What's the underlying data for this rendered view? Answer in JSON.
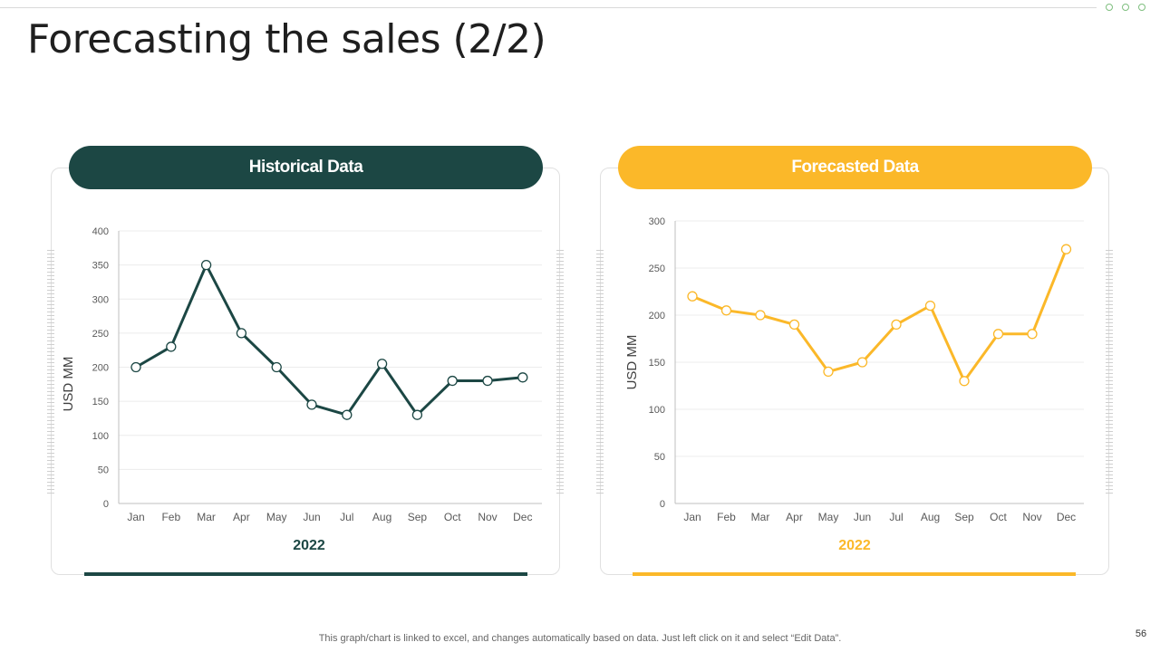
{
  "slide": {
    "title": "Forecasting the sales (2/2)",
    "footer_note": "This graph/chart is linked to excel,  and changes automatically based on data. Just left click on it and select “Edit Data”.",
    "page_number": "56"
  },
  "colors": {
    "historical": "#1c4744",
    "forecast": "#fbb829"
  },
  "chart_data": [
    {
      "type": "line",
      "title": "Historical Data",
      "categories": [
        "Jan",
        "Feb",
        "Mar",
        "Apr",
        "May",
        "Jun",
        "Jul",
        "Aug",
        "Sep",
        "Oct",
        "Nov",
        "Dec"
      ],
      "series": [
        {
          "name": "2022",
          "values": [
            200,
            230,
            350,
            250,
            200,
            145,
            130,
            205,
            130,
            180,
            180,
            185
          ]
        }
      ],
      "xlabel": "2022",
      "ylabel": "USD MM",
      "ylim": [
        0,
        400
      ],
      "yticks": [
        0,
        50,
        100,
        150,
        200,
        250,
        300,
        350,
        400
      ],
      "grid": true
    },
    {
      "type": "line",
      "title": "Forecasted Data",
      "categories": [
        "Jan",
        "Feb",
        "Mar",
        "Apr",
        "May",
        "Jun",
        "Jul",
        "Aug",
        "Sep",
        "Oct",
        "Nov",
        "Dec"
      ],
      "series": [
        {
          "name": "2022",
          "values": [
            220,
            205,
            200,
            190,
            140,
            150,
            190,
            210,
            130,
            180,
            180,
            270
          ]
        }
      ],
      "xlabel": "2022",
      "ylabel": "USD MM",
      "ylim": [
        0,
        300
      ],
      "yticks": [
        0,
        50,
        100,
        150,
        200,
        250,
        300
      ],
      "grid": true
    }
  ]
}
